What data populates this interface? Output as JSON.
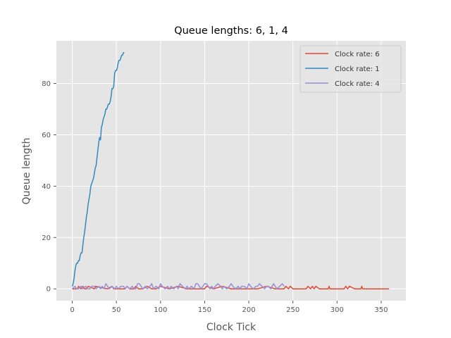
{
  "chart_data": {
    "type": "line",
    "title": "Queue lengths: 6, 1, 4",
    "xlabel": "Clock Tick",
    "ylabel": "Queue length",
    "xlim": [
      -18,
      378
    ],
    "ylim": [
      -4.6,
      96.6
    ],
    "xticks": [
      0,
      50,
      100,
      150,
      200,
      250,
      300,
      350
    ],
    "yticks": [
      0,
      20,
      40,
      60,
      80
    ],
    "grid": true,
    "legend_position": "top-right",
    "series": [
      {
        "name": "Clock rate: 6",
        "color": "#E24A33",
        "x": [
          0,
          6,
          7,
          10,
          12,
          14,
          16,
          18,
          25,
          26,
          40,
          45,
          47,
          60,
          62,
          65,
          70,
          72,
          75,
          80,
          85,
          90,
          95,
          100,
          110,
          120,
          130,
          140,
          150,
          152,
          160,
          170,
          180,
          190,
          200,
          210,
          220,
          230,
          240,
          242,
          245,
          247,
          250,
          260,
          265,
          267,
          270,
          272,
          274,
          276,
          280,
          290,
          291,
          292,
          300,
          308,
          310,
          312,
          314,
          320,
          327,
          328,
          329,
          340,
          350,
          359
        ],
        "y": [
          0,
          0,
          1,
          0,
          1,
          0,
          0,
          1,
          0,
          1,
          0,
          1,
          0,
          0,
          1,
          0,
          0,
          1,
          0,
          0,
          1,
          0,
          0,
          1,
          0,
          1,
          0,
          0,
          0,
          1,
          0,
          1,
          0,
          0,
          0,
          0,
          1,
          0,
          0,
          1,
          0,
          1,
          0,
          0,
          0,
          1,
          0,
          1,
          0,
          1,
          0,
          0,
          1,
          0,
          0,
          0,
          1,
          0,
          1,
          0,
          0,
          1,
          0,
          0,
          0,
          0
        ]
      },
      {
        "name": "Clock rate: 1",
        "color": "#348ABD",
        "x": [
          0,
          1,
          2,
          3,
          4,
          5,
          6,
          7,
          8,
          9,
          10,
          11,
          12,
          13,
          14,
          15,
          16,
          17,
          18,
          19,
          20,
          21,
          22,
          23,
          24,
          25,
          26,
          27,
          28,
          29,
          30,
          31,
          32,
          33,
          34,
          35,
          36,
          37,
          38,
          39,
          40,
          41,
          42,
          43,
          44,
          45,
          46,
          47,
          48,
          49,
          50,
          51,
          52,
          53,
          54,
          55,
          56,
          57,
          58,
          59
        ],
        "y": [
          1,
          2,
          4,
          7,
          9,
          10,
          10,
          11,
          11,
          13,
          14,
          14,
          17,
          20,
          22,
          25,
          28,
          30,
          33,
          35,
          37,
          40,
          41,
          42,
          43,
          45,
          47,
          48,
          51,
          54,
          57,
          59,
          58,
          63,
          64,
          66,
          67,
          68,
          70,
          70,
          71,
          72,
          72,
          73,
          75,
          78,
          78,
          79,
          84,
          85,
          85,
          86,
          88,
          89,
          89,
          90,
          91,
          91,
          92,
          92
        ]
      },
      {
        "name": "Clock rate: 4",
        "color": "#988ED5",
        "x": [
          0,
          3,
          5,
          7,
          10,
          12,
          15,
          18,
          20,
          22,
          25,
          27,
          30,
          32,
          34,
          36,
          38,
          40,
          42,
          45,
          48,
          50,
          52,
          55,
          58,
          60,
          62,
          65,
          68,
          70,
          72,
          74,
          76,
          78,
          80,
          83,
          85,
          88,
          90,
          92,
          95,
          98,
          100,
          102,
          105,
          108,
          110,
          112,
          115,
          118,
          120,
          122,
          125,
          128,
          130,
          132,
          135,
          138,
          140,
          142,
          144,
          146,
          148,
          150,
          152,
          154,
          156,
          158,
          160,
          162,
          165,
          168,
          170,
          172,
          175,
          178,
          180,
          182,
          185,
          188,
          190,
          192,
          195,
          198,
          200,
          202,
          205,
          208,
          210,
          212,
          215,
          218,
          220,
          222,
          225,
          228,
          230,
          232,
          235,
          238,
          240
        ],
        "y": [
          0,
          1,
          0,
          0,
          1,
          0,
          1,
          0,
          0,
          1,
          1,
          0,
          1,
          0,
          1,
          0,
          2,
          1,
          0,
          1,
          0,
          1,
          0,
          1,
          1,
          0,
          1,
          0,
          1,
          0,
          0,
          2,
          2,
          1,
          0,
          1,
          0,
          1,
          2,
          0,
          1,
          0,
          2,
          1,
          0,
          1,
          0,
          1,
          0,
          1,
          0,
          2,
          1,
          0,
          1,
          0,
          1,
          0,
          2,
          2,
          1,
          0,
          1,
          2,
          2,
          1,
          0,
          1,
          0,
          1,
          2,
          1,
          0,
          1,
          0,
          1,
          2,
          1,
          0,
          1,
          0,
          1,
          1,
          0,
          2,
          1,
          0,
          1,
          1,
          2,
          1,
          0,
          1,
          1,
          0,
          2,
          1,
          0,
          1,
          2,
          1
        ]
      }
    ]
  }
}
